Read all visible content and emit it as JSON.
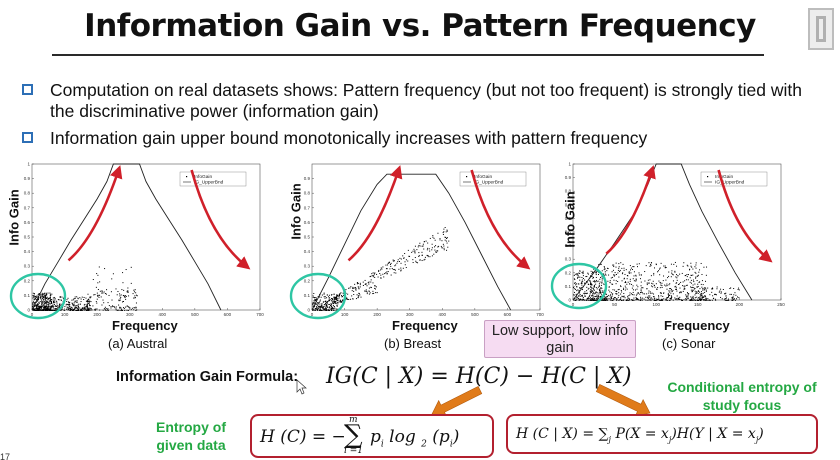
{
  "slide": {
    "title": "Information Gain vs. Pattern Frequency",
    "bullets": [
      "Computation on real datasets shows:  Pattern frequency (but not too frequent) is strongly tied with the discriminative power (information gain)",
      "Information gain upper bound monotonically increases with pattern frequency"
    ],
    "callout": "Low support, low info gain",
    "formula_label": "Information Gain Formula:",
    "formula_main": "IG(C | X) = H(C) − H(C | X)",
    "entropy_label": "Entropy of given data",
    "cond_entropy_label": "Conditional entropy of study focus",
    "slide_number": "17",
    "colors": {
      "bullet_box": "#2d6fb6",
      "arrow_red": "#d0202a",
      "circle_teal": "#2ec6a4",
      "green_text": "#24a843",
      "orange_arrow": "#e07b1a",
      "box_red": "#b3202f",
      "callout_bg": "#f6dcf2"
    }
  },
  "chart_data": [
    {
      "type": "scatter",
      "caption": "(a) Austral",
      "xlabel": "Frequency",
      "ylabel": "Info Gain",
      "xlim": [
        0,
        700
      ],
      "ylim": [
        0,
        1
      ],
      "xticks": [
        0,
        100,
        200,
        300,
        400,
        500,
        600,
        700
      ],
      "yticks": [
        0,
        0.1,
        0.2,
        0.3,
        0.4,
        0.5,
        0.6,
        0.7,
        0.8,
        0.9,
        1
      ],
      "legend": [
        "InfoGain",
        "IG_UpperBnd"
      ],
      "legend_position": "top-right",
      "upper_bound": [
        [
          0,
          0
        ],
        [
          40,
          0.18
        ],
        [
          80,
          0.33
        ],
        [
          120,
          0.48
        ],
        [
          160,
          0.62
        ],
        [
          200,
          0.76
        ],
        [
          230,
          0.88
        ],
        [
          250,
          1
        ],
        [
          330,
          1
        ],
        [
          350,
          0.88
        ],
        [
          380,
          0.76
        ],
        [
          420,
          0.62
        ],
        [
          460,
          0.48
        ],
        [
          500,
          0.33
        ],
        [
          540,
          0.18
        ],
        [
          580,
          0
        ]
      ],
      "scatter_regions": [
        {
          "x": [
            0,
            60
          ],
          "y": [
            0,
            0.12
          ],
          "density": 380
        },
        {
          "x": [
            60,
            180
          ],
          "y": [
            0,
            0.1
          ],
          "density": 260
        },
        {
          "x": [
            150,
            320
          ],
          "y": [
            0,
            0.16
          ],
          "density": 130
        },
        {
          "x": [
            180,
            330
          ],
          "y": [
            0.1,
            0.3
          ],
          "density": 35
        }
      ]
    },
    {
      "type": "scatter",
      "caption": "(b) Breast",
      "xlabel": "Frequency",
      "ylabel": "Info Gain",
      "xlim": [
        0,
        700
      ],
      "ylim": [
        0,
        1
      ],
      "xticks": [
        0,
        100,
        200,
        300,
        400,
        500,
        600,
        700
      ],
      "yticks": [
        0,
        0.1,
        0.2,
        0.3,
        0.4,
        0.5,
        0.6,
        0.7,
        0.8,
        0.9
      ],
      "legend": [
        "InfoGain",
        "IG_UpperBnd"
      ],
      "legend_position": "top-right",
      "upper_bound": [
        [
          0,
          0
        ],
        [
          50,
          0.22
        ],
        [
          100,
          0.45
        ],
        [
          150,
          0.68
        ],
        [
          200,
          0.86
        ],
        [
          230,
          0.93
        ],
        [
          380,
          0.93
        ],
        [
          420,
          0.8
        ],
        [
          470,
          0.6
        ],
        [
          520,
          0.38
        ],
        [
          570,
          0.16
        ],
        [
          610,
          0
        ]
      ],
      "scatter_regions": [
        {
          "x": [
            0,
            80
          ],
          "y": [
            0,
            0.12
          ],
          "density": 200
        },
        {
          "x": [
            40,
            420
          ],
          "slope_band": [
            0.001,
            0.0014
          ],
          "density": 260
        },
        {
          "x": [
            20,
            200
          ],
          "slope_band": [
            0.0006,
            0.0009
          ],
          "density": 80
        }
      ]
    },
    {
      "type": "scatter",
      "caption": "(c) Sonar",
      "xlabel": "Frequency",
      "ylabel": "Info Gain",
      "xlim": [
        0,
        250
      ],
      "ylim": [
        0,
        1
      ],
      "xticks": [
        0,
        50,
        100,
        150,
        200,
        250
      ],
      "yticks": [
        0,
        0.1,
        0.2,
        0.3,
        0.4,
        0.5,
        0.6,
        0.7,
        0.8,
        0.9,
        1
      ],
      "legend": [
        "InfoGain",
        "IG_UpperBnd"
      ],
      "legend_position": "top-right",
      "upper_bound": [
        [
          0,
          0
        ],
        [
          25,
          0.2
        ],
        [
          50,
          0.42
        ],
        [
          75,
          0.65
        ],
        [
          90,
          0.85
        ],
        [
          100,
          1
        ],
        [
          130,
          1
        ],
        [
          140,
          0.85
        ],
        [
          155,
          0.65
        ],
        [
          175,
          0.42
        ],
        [
          195,
          0.2
        ],
        [
          215,
          0
        ]
      ],
      "scatter_regions": [
        {
          "x": [
            0,
            40
          ],
          "y": [
            0,
            0.22
          ],
          "density": 260
        },
        {
          "x": [
            20,
            160
          ],
          "y": [
            0,
            0.28
          ],
          "density": 700
        },
        {
          "x": [
            140,
            200
          ],
          "y": [
            0,
            0.1
          ],
          "density": 120
        }
      ]
    }
  ]
}
